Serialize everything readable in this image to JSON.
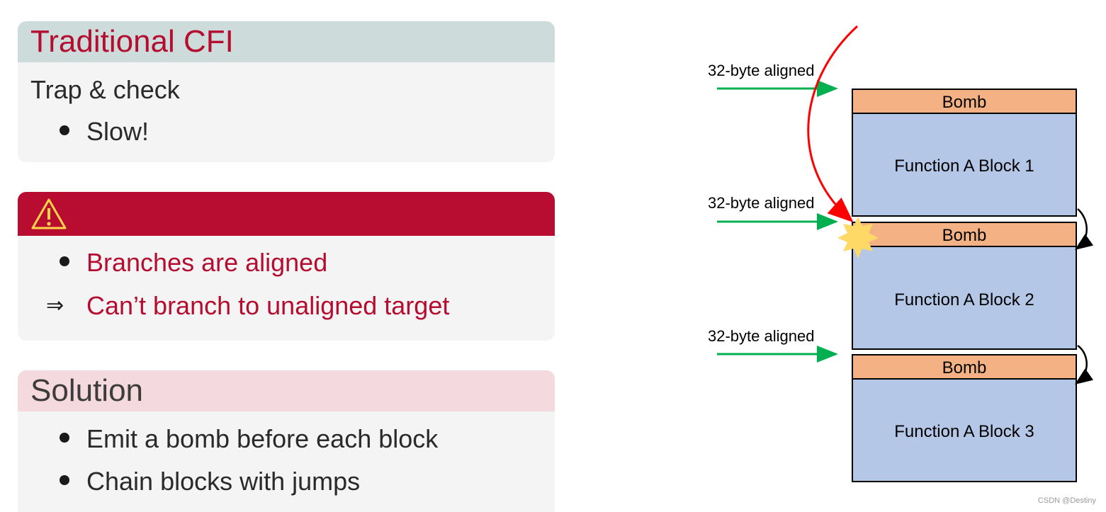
{
  "panels": {
    "traditional": {
      "title": "Traditional CFI",
      "line": "Trap & check",
      "bullets": [
        "Slow!"
      ]
    },
    "warning": {
      "icon": "warning-triangle-icon",
      "bullets": [
        "Branches are aligned"
      ],
      "implication_symbol": "⇒",
      "implication": "Can’t branch to unaligned target"
    },
    "solution": {
      "title": "Solution",
      "bullets": [
        "Emit a bomb before each block",
        "Chain blocks with jumps"
      ]
    }
  },
  "diagram": {
    "alignment_labels": [
      "32-byte aligned",
      "32-byte aligned",
      "32-byte aligned"
    ],
    "bomb_label": "Bomb",
    "blocks": [
      "Function A Block 1",
      "Function A Block 2",
      "Function A Block 3"
    ],
    "colors": {
      "bomb": "#f4b183",
      "block": "#b4c7e7",
      "aligned_arrow": "#00b050",
      "branch_arrow": "#ff0000",
      "explosion": "#ffd966"
    }
  },
  "watermark": "CSDN @Destiny"
}
